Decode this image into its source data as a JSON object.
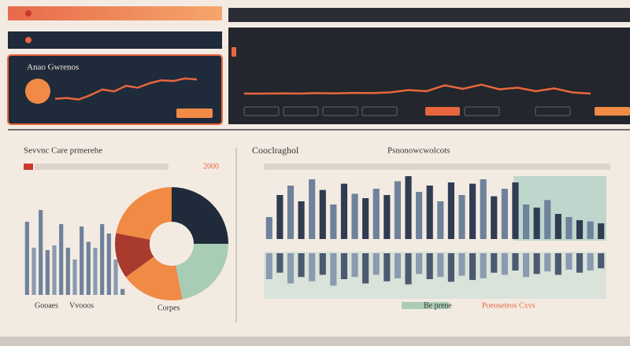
{
  "top_left": {
    "panel_title": "Anao Gwrenos",
    "line": [
      20,
      22,
      18,
      30,
      45,
      40,
      55,
      50,
      62,
      70,
      68,
      75,
      72
    ]
  },
  "top_right": {
    "line": [
      20,
      20,
      21,
      20,
      22,
      21,
      23,
      22,
      25,
      35,
      30,
      55,
      40,
      58,
      38,
      45,
      30,
      42,
      25,
      20
    ]
  },
  "left_chart": {
    "title": "Sevvnc Care prmerehe",
    "value_label": "2000",
    "bars": [
      62,
      40,
      72,
      38,
      42,
      60,
      40,
      30,
      58,
      45,
      40,
      60,
      52,
      30,
      5
    ],
    "x_labels": [
      "Gooaes",
      "Vvooos"
    ],
    "donut": {
      "label": "Corpes",
      "values": [
        25,
        22,
        18,
        13,
        22
      ],
      "colors": [
        "#1f2a3a",
        "#a8cdb4",
        "#f08a45",
        "#a83a2e",
        "#f08a45"
      ]
    }
  },
  "right_chart": {
    "title": "Cooclraghol",
    "subtitle": "Psnonowcwolcots",
    "bars": [
      35,
      70,
      85,
      60,
      95,
      78,
      55,
      88,
      72,
      65,
      80,
      70,
      92,
      100,
      75,
      85,
      60,
      90,
      70,
      88,
      95,
      68,
      80,
      90,
      55,
      50,
      62,
      40,
      35,
      30,
      28,
      25
    ],
    "lower_bars": [
      60,
      45,
      70,
      55,
      65,
      50,
      75,
      60,
      55,
      70,
      50,
      65,
      58,
      72,
      48,
      60,
      55,
      66,
      52,
      62,
      58,
      45,
      50,
      40,
      55,
      48,
      42,
      50,
      38,
      45,
      40,
      35
    ],
    "legend": [
      "Be prene",
      "Poeoseteos Cxvs"
    ]
  }
}
